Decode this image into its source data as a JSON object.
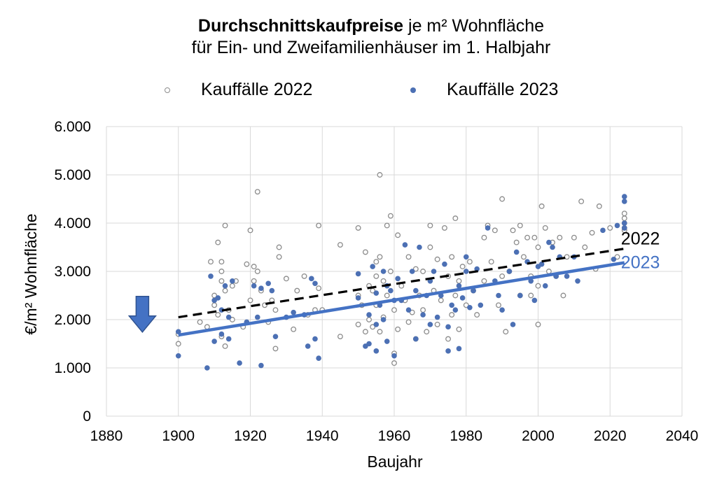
{
  "title_bold": "Durchschnittskaufpreise",
  "title_rest": " je m² Wohnfläche",
  "subtitle": "für Ein- und Zweifamilienhäuser im 1. Halbjahr",
  "colors": {
    "series2022": "#8c8c8c",
    "series2023": "#4472c4",
    "trend2022": "#000000",
    "trend2023": "#4472c4",
    "arrow": "#4472c4"
  },
  "chart_data": {
    "type": "scatter",
    "xlabel": "Baujahr",
    "ylabel": "€/m² Wohnfläche",
    "xlim": [
      1880,
      2040
    ],
    "ylim": [
      0,
      6000
    ],
    "x_ticks": [
      "1880",
      "1900",
      "1920",
      "1940",
      "1960",
      "1980",
      "2000",
      "2020",
      "2040"
    ],
    "y_ticks": [
      "0",
      "1.000",
      "2.000",
      "3.000",
      "4.000",
      "5.000",
      "6.000"
    ],
    "grid": "vertical and horizontal",
    "legend_position": "top",
    "series": [
      {
        "name": "Kauffälle 2022",
        "marker": "hollow-circle",
        "points": [
          [
            1900,
            1500
          ],
          [
            1900,
            1700
          ],
          [
            1906,
            1950
          ],
          [
            1908,
            1850
          ],
          [
            1909,
            3200
          ],
          [
            1910,
            2500
          ],
          [
            1910,
            2300
          ],
          [
            1911,
            2100
          ],
          [
            1911,
            3600
          ],
          [
            1912,
            3200
          ],
          [
            1912,
            3000
          ],
          [
            1912,
            2800
          ],
          [
            1912,
            1650
          ],
          [
            1913,
            1450
          ],
          [
            1913,
            2600
          ],
          [
            1913,
            3950
          ],
          [
            1914,
            2200
          ],
          [
            1915,
            2000
          ],
          [
            1915,
            2700
          ],
          [
            1916,
            2800
          ],
          [
            1918,
            1850
          ],
          [
            1919,
            3150
          ],
          [
            1920,
            3850
          ],
          [
            1920,
            2400
          ],
          [
            1921,
            3100
          ],
          [
            1921,
            2800
          ],
          [
            1922,
            4650
          ],
          [
            1922,
            3000
          ],
          [
            1923,
            2600
          ],
          [
            1924,
            2300
          ],
          [
            1925,
            1950
          ],
          [
            1926,
            2400
          ],
          [
            1927,
            2200
          ],
          [
            1927,
            1400
          ],
          [
            1928,
            3500
          ],
          [
            1928,
            3300
          ],
          [
            1930,
            2850
          ],
          [
            1932,
            1800
          ],
          [
            1933,
            2600
          ],
          [
            1935,
            2900
          ],
          [
            1936,
            2100
          ],
          [
            1938,
            2200
          ],
          [
            1939,
            3950
          ],
          [
            1939,
            2650
          ],
          [
            1940,
            2200
          ],
          [
            1945,
            3550
          ],
          [
            1945,
            1650
          ],
          [
            1950,
            3900
          ],
          [
            1950,
            2500
          ],
          [
            1950,
            1900
          ],
          [
            1951,
            2300
          ],
          [
            1952,
            1750
          ],
          [
            1952,
            3400
          ],
          [
            1953,
            2700
          ],
          [
            1953,
            2000
          ],
          [
            1954,
            2600
          ],
          [
            1954,
            1850
          ],
          [
            1955,
            2900
          ],
          [
            1955,
            2300
          ],
          [
            1955,
            3200
          ],
          [
            1956,
            5000
          ],
          [
            1956,
            3300
          ],
          [
            1956,
            1750
          ],
          [
            1957,
            2800
          ],
          [
            1957,
            2050
          ],
          [
            1958,
            3950
          ],
          [
            1958,
            2500
          ],
          [
            1959,
            4150
          ],
          [
            1959,
            3000
          ],
          [
            1960,
            2200
          ],
          [
            1960,
            1300
          ],
          [
            1960,
            1100
          ],
          [
            1961,
            1800
          ],
          [
            1961,
            3750
          ],
          [
            1962,
            2700
          ],
          [
            1963,
            2400
          ],
          [
            1964,
            3300
          ],
          [
            1964,
            1950
          ],
          [
            1965,
            2150
          ],
          [
            1966,
            3050
          ],
          [
            1966,
            1600
          ],
          [
            1967,
            2500
          ],
          [
            1968,
            3000
          ],
          [
            1968,
            2200
          ],
          [
            1969,
            1750
          ],
          [
            1970,
            3500
          ],
          [
            1970,
            3950
          ],
          [
            1971,
            2600
          ],
          [
            1972,
            1900
          ],
          [
            1972,
            3250
          ],
          [
            1973,
            2400
          ],
          [
            1974,
            3900
          ],
          [
            1975,
            2900
          ],
          [
            1975,
            1600
          ],
          [
            1976,
            3300
          ],
          [
            1976,
            2100
          ],
          [
            1977,
            4100
          ],
          [
            1977,
            2500
          ],
          [
            1978,
            2800
          ],
          [
            1978,
            1800
          ],
          [
            1979,
            3100
          ],
          [
            1980,
            2300
          ],
          [
            1981,
            3200
          ],
          [
            1982,
            2600
          ],
          [
            1983,
            2100
          ],
          [
            1985,
            3700
          ],
          [
            1985,
            2800
          ],
          [
            1986,
            3950
          ],
          [
            1987,
            3200
          ],
          [
            1988,
            3850
          ],
          [
            1989,
            2300
          ],
          [
            1990,
            4500
          ],
          [
            1990,
            2900
          ],
          [
            1991,
            1750
          ],
          [
            1992,
            3000
          ],
          [
            1993,
            3850
          ],
          [
            1994,
            3600
          ],
          [
            1995,
            3950
          ],
          [
            1995,
            2500
          ],
          [
            1996,
            3300
          ],
          [
            1997,
            3700
          ],
          [
            1998,
            2900
          ],
          [
            1998,
            2500
          ],
          [
            1999,
            3700
          ],
          [
            2000,
            1900
          ],
          [
            2000,
            2700
          ],
          [
            2000,
            3500
          ],
          [
            2001,
            4350
          ],
          [
            2002,
            3900
          ],
          [
            2003,
            3000
          ],
          [
            2004,
            3600
          ],
          [
            2005,
            2900
          ],
          [
            2006,
            3700
          ],
          [
            2007,
            2500
          ],
          [
            2008,
            3300
          ],
          [
            2010,
            3700
          ],
          [
            2012,
            4450
          ],
          [
            2013,
            3500
          ],
          [
            2015,
            3800
          ],
          [
            2016,
            3050
          ],
          [
            2017,
            4350
          ],
          [
            2020,
            3900
          ],
          [
            2022,
            3300
          ],
          [
            2024,
            3850
          ],
          [
            2024,
            3900
          ],
          [
            2024,
            4000
          ],
          [
            2024,
            4100
          ],
          [
            2024,
            4200
          ]
        ]
      },
      {
        "name": "Kauffälle 2023",
        "marker": "filled-circle",
        "points": [
          [
            1900,
            1250
          ],
          [
            1900,
            1750
          ],
          [
            1908,
            1000
          ],
          [
            1909,
            2900
          ],
          [
            1910,
            1550
          ],
          [
            1910,
            2400
          ],
          [
            1911,
            2450
          ],
          [
            1912,
            1700
          ],
          [
            1912,
            2200
          ],
          [
            1913,
            2700
          ],
          [
            1914,
            2050
          ],
          [
            1914,
            1600
          ],
          [
            1915,
            2800
          ],
          [
            1917,
            1100
          ],
          [
            1919,
            1950
          ],
          [
            1921,
            2700
          ],
          [
            1922,
            2050
          ],
          [
            1923,
            2650
          ],
          [
            1923,
            1050
          ],
          [
            1925,
            2750
          ],
          [
            1926,
            2600
          ],
          [
            1927,
            1650
          ],
          [
            1930,
            2050
          ],
          [
            1932,
            2150
          ],
          [
            1935,
            2100
          ],
          [
            1936,
            1450
          ],
          [
            1937,
            2850
          ],
          [
            1938,
            2750
          ],
          [
            1938,
            1600
          ],
          [
            1939,
            1200
          ],
          [
            1950,
            2950
          ],
          [
            1950,
            2450
          ],
          [
            1952,
            1450
          ],
          [
            1953,
            2100
          ],
          [
            1953,
            1500
          ],
          [
            1954,
            3100
          ],
          [
            1955,
            1350
          ],
          [
            1955,
            2550
          ],
          [
            1955,
            1900
          ],
          [
            1956,
            2300
          ],
          [
            1957,
            3000
          ],
          [
            1957,
            2000
          ],
          [
            1958,
            2700
          ],
          [
            1958,
            1550
          ],
          [
            1959,
            2600
          ],
          [
            1960,
            1250
          ],
          [
            1960,
            2400
          ],
          [
            1961,
            2850
          ],
          [
            1962,
            2400
          ],
          [
            1963,
            3550
          ],
          [
            1964,
            2200
          ],
          [
            1965,
            3000
          ],
          [
            1966,
            2600
          ],
          [
            1966,
            1600
          ],
          [
            1967,
            3500
          ],
          [
            1968,
            2100
          ],
          [
            1969,
            2500
          ],
          [
            1970,
            2800
          ],
          [
            1970,
            1900
          ],
          [
            1971,
            3000
          ],
          [
            1972,
            2050
          ],
          [
            1973,
            2500
          ],
          [
            1974,
            3150
          ],
          [
            1975,
            1350
          ],
          [
            1975,
            1850
          ],
          [
            1976,
            2300
          ],
          [
            1977,
            2200
          ],
          [
            1978,
            2700
          ],
          [
            1978,
            1400
          ],
          [
            1979,
            2450
          ],
          [
            1980,
            3000
          ],
          [
            1980,
            3300
          ],
          [
            1981,
            2250
          ],
          [
            1982,
            2600
          ],
          [
            1983,
            3050
          ],
          [
            1984,
            2300
          ],
          [
            1986,
            3900
          ],
          [
            1988,
            2800
          ],
          [
            1989,
            2500
          ],
          [
            1990,
            2200
          ],
          [
            1992,
            3000
          ],
          [
            1993,
            1900
          ],
          [
            1994,
            3400
          ],
          [
            1995,
            2500
          ],
          [
            1997,
            3200
          ],
          [
            1998,
            2800
          ],
          [
            1999,
            2400
          ],
          [
            2000,
            3100
          ],
          [
            2001,
            3150
          ],
          [
            2002,
            2700
          ],
          [
            2003,
            3600
          ],
          [
            2004,
            3500
          ],
          [
            2005,
            2900
          ],
          [
            2006,
            3300
          ],
          [
            2008,
            2900
          ],
          [
            2010,
            3300
          ],
          [
            2011,
            2800
          ],
          [
            2018,
            3850
          ],
          [
            2021,
            3250
          ],
          [
            2022,
            3950
          ],
          [
            2024,
            3900
          ],
          [
            2024,
            4000
          ],
          [
            2024,
            4450
          ],
          [
            2024,
            4550
          ]
        ]
      },
      {
        "name": "2022",
        "type": "trendline",
        "style": "dashed",
        "x": [
          1900,
          2024
        ],
        "y": [
          2050,
          3470
        ]
      },
      {
        "name": "2023",
        "type": "trendline",
        "style": "solid",
        "x": [
          1900,
          2024
        ],
        "y": [
          1680,
          3180
        ]
      }
    ],
    "annotations": [
      {
        "type": "arrow-down",
        "x": 1890,
        "y": 1800
      }
    ]
  }
}
